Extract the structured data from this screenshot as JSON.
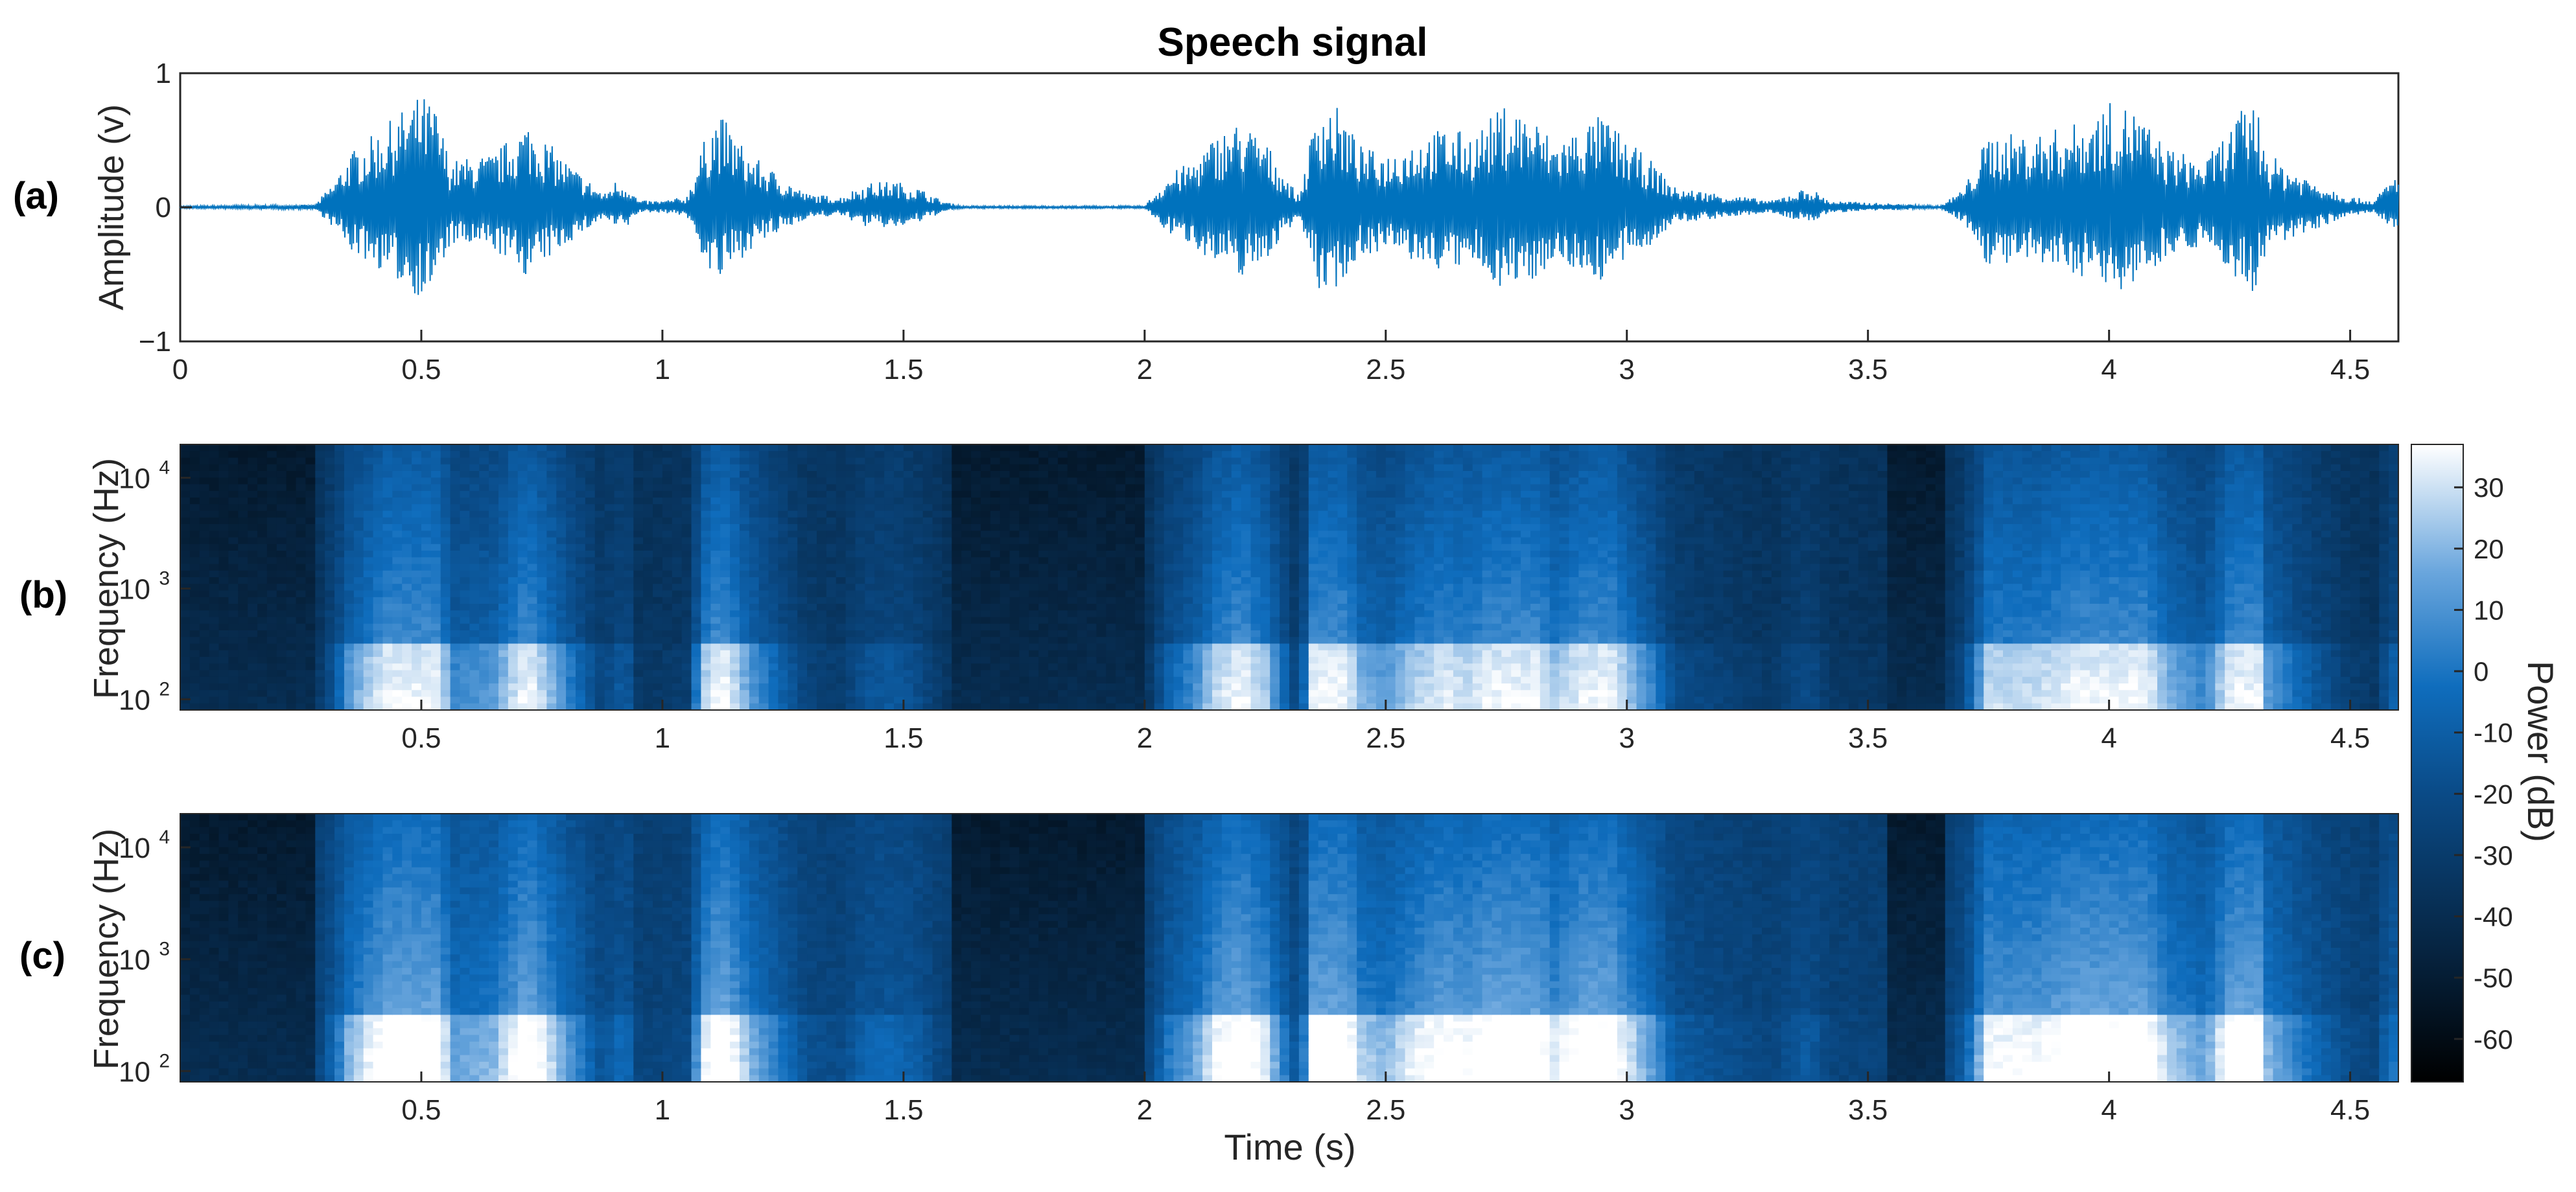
{
  "figure": {
    "title": "Speech signal",
    "xlabel": "Time (s)",
    "colorbar": {
      "label": "Power (dB)",
      "ticks": [
        30,
        20,
        10,
        0,
        -10,
        -20,
        -30,
        -40,
        -50,
        -60
      ],
      "range": [
        -67,
        37
      ],
      "colors": [
        "#000000",
        "#06233f",
        "#0a4a86",
        "#0f6dbd",
        "#6aa6dd",
        "#ffffff"
      ]
    },
    "panel_labels": [
      "(a)",
      "(b)",
      "(c)"
    ]
  },
  "chart_data": [
    {
      "type": "line",
      "panel": "(a)",
      "title": "Speech signal",
      "ylabel": "Amplitude (v)",
      "xlim": [
        0,
        4.6
      ],
      "ylim": [
        -1,
        1
      ],
      "x_ticks": [
        0,
        0.5,
        1,
        1.5,
        2,
        2.5,
        3,
        3.5,
        4,
        4.5
      ],
      "y_ticks": [
        1,
        0,
        -1
      ],
      "y_tick_labels": [
        "1",
        "0",
        "−1"
      ],
      "color": "#0072bd",
      "envelope": {
        "x": [
          0,
          0.28,
          0.32,
          0.35,
          0.42,
          0.5,
          0.53,
          0.56,
          0.65,
          0.72,
          0.8,
          0.88,
          0.9,
          0.93,
          0.95,
          1.0,
          1.05,
          1.1,
          1.12,
          1.18,
          1.3,
          1.37,
          1.42,
          1.48,
          1.53,
          1.58,
          1.62,
          2.0,
          2.05,
          2.1,
          2.15,
          2.2,
          2.25,
          2.32,
          2.36,
          2.4,
          2.45,
          2.5,
          2.55,
          2.62,
          2.68,
          2.75,
          2.8,
          2.85,
          2.95,
          3.0,
          3.05,
          3.1,
          3.2,
          3.3,
          3.35,
          3.38,
          3.42,
          3.65,
          3.7,
          3.75,
          3.85,
          3.95,
          4.0,
          4.05,
          4.12,
          4.2,
          4.28,
          4.3,
          4.33,
          4.4,
          4.5,
          4.55,
          4.58,
          4.6
        ],
        "amplitude": [
          0.01,
          0.02,
          0.2,
          0.4,
          0.6,
          0.85,
          0.75,
          0.35,
          0.4,
          0.65,
          0.35,
          0.1,
          0.2,
          0.18,
          0.05,
          0.05,
          0.08,
          0.65,
          0.7,
          0.4,
          0.1,
          0.08,
          0.18,
          0.2,
          0.15,
          0.05,
          0.01,
          0.01,
          0.25,
          0.35,
          0.55,
          0.65,
          0.5,
          0.08,
          0.8,
          0.75,
          0.45,
          0.4,
          0.5,
          0.6,
          0.55,
          0.78,
          0.7,
          0.5,
          0.7,
          0.5,
          0.35,
          0.15,
          0.1,
          0.05,
          0.12,
          0.15,
          0.05,
          0.01,
          0.15,
          0.55,
          0.55,
          0.65,
          0.78,
          0.75,
          0.45,
          0.35,
          0.75,
          0.85,
          0.4,
          0.25,
          0.08,
          0.05,
          0.2,
          0.25
        ]
      }
    },
    {
      "type": "heatmap",
      "panel": "(b)",
      "ylabel": "Frequency (Hz)",
      "y_scale": "log",
      "xlim": [
        0,
        4.6
      ],
      "ylim": [
        80,
        20000
      ],
      "x_ticks": [
        0.5,
        1,
        1.5,
        2,
        2.5,
        3,
        3.5,
        4,
        4.5
      ],
      "y_ticks": [
        100,
        1000,
        10000
      ],
      "y_tick_labels": [
        "10^2",
        "10^3",
        "10^4"
      ],
      "value_range_db": [
        -67,
        37
      ]
    },
    {
      "type": "heatmap",
      "panel": "(c)",
      "ylabel": "Frequency (Hz)",
      "y_scale": "log",
      "xlim": [
        0,
        4.6
      ],
      "ylim": [
        80,
        20000
      ],
      "x_ticks": [
        0.5,
        1,
        1.5,
        2,
        2.5,
        3,
        3.5,
        4,
        4.5
      ],
      "y_ticks": [
        100,
        1000,
        10000
      ],
      "y_tick_labels": [
        "10^2",
        "10^3",
        "10^4"
      ],
      "value_range_db": [
        -67,
        37
      ]
    }
  ]
}
